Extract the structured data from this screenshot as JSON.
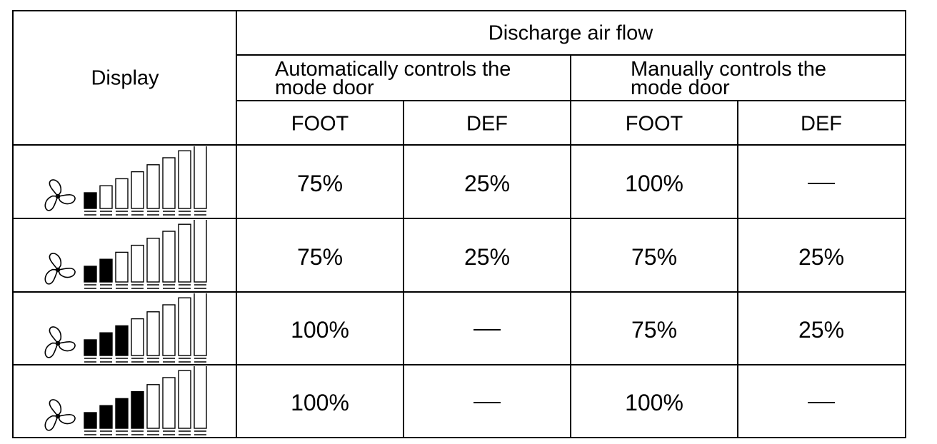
{
  "table": {
    "header": {
      "display": "Display",
      "group": "Discharge air flow",
      "auto": "Automatically controls the\nmode door",
      "manual": "Manually controls the\nmode door",
      "cols": [
        "FOOT",
        "DEF",
        "FOOT",
        "DEF"
      ]
    },
    "rows": [
      {
        "fan_level": 1,
        "values": [
          "75%",
          "25%",
          "100%",
          "—"
        ]
      },
      {
        "fan_level": 2,
        "values": [
          "75%",
          "25%",
          "75%",
          "25%"
        ]
      },
      {
        "fan_level": 3,
        "values": [
          "100%",
          "—",
          "75%",
          "25%"
        ]
      },
      {
        "fan_level": 4,
        "values": [
          "100%",
          "—",
          "100%",
          "—"
        ]
      }
    ],
    "fan_steps_total": 8,
    "icon": "fan-icon"
  }
}
